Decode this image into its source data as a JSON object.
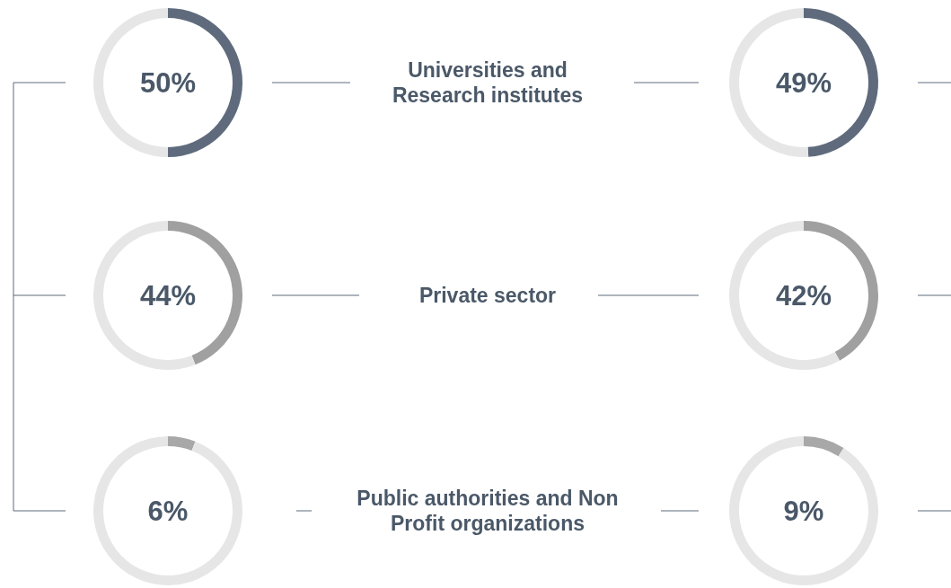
{
  "chart_data": [
    {
      "type": "donut",
      "categories": [
        null,
        null
      ],
      "values": [
        50,
        50
      ],
      "colors": [
        "#5f6b7d",
        "#e6e6e6"
      ],
      "title": "50%"
    },
    {
      "type": "other",
      "annotations": [
        "Universities and Research institutes"
      ]
    },
    {
      "type": "donut",
      "categories": [
        null,
        null
      ],
      "values": [
        49,
        51
      ],
      "colors": [
        "#5f6b7d",
        "#e6e6e6"
      ],
      "title": "49%"
    },
    {
      "type": "donut",
      "categories": [
        null,
        null
      ],
      "values": [
        44,
        56
      ],
      "colors": [
        "#a0a0a0",
        "#e6e6e6"
      ],
      "title": "44%"
    },
    {
      "type": "other",
      "annotations": [
        "Private sector"
      ]
    },
    {
      "type": "donut",
      "categories": [
        null,
        null
      ],
      "values": [
        42,
        58
      ],
      "colors": [
        "#a0a0a0",
        "#e6e6e6"
      ],
      "title": "42%"
    },
    {
      "type": "donut",
      "categories": [
        null,
        null
      ],
      "values": [
        6,
        94
      ],
      "colors": [
        "#a8a8a8",
        "#e6e6e6"
      ],
      "title": "6%"
    },
    {
      "type": "other",
      "annotations": [
        "Public authorities and Non Profit organizations"
      ]
    },
    {
      "type": "donut",
      "categories": [
        null,
        null
      ],
      "values": [
        9,
        91
      ],
      "colors": [
        "#a8a8a8",
        "#e6e6e6"
      ],
      "title": "9%"
    }
  ]
}
